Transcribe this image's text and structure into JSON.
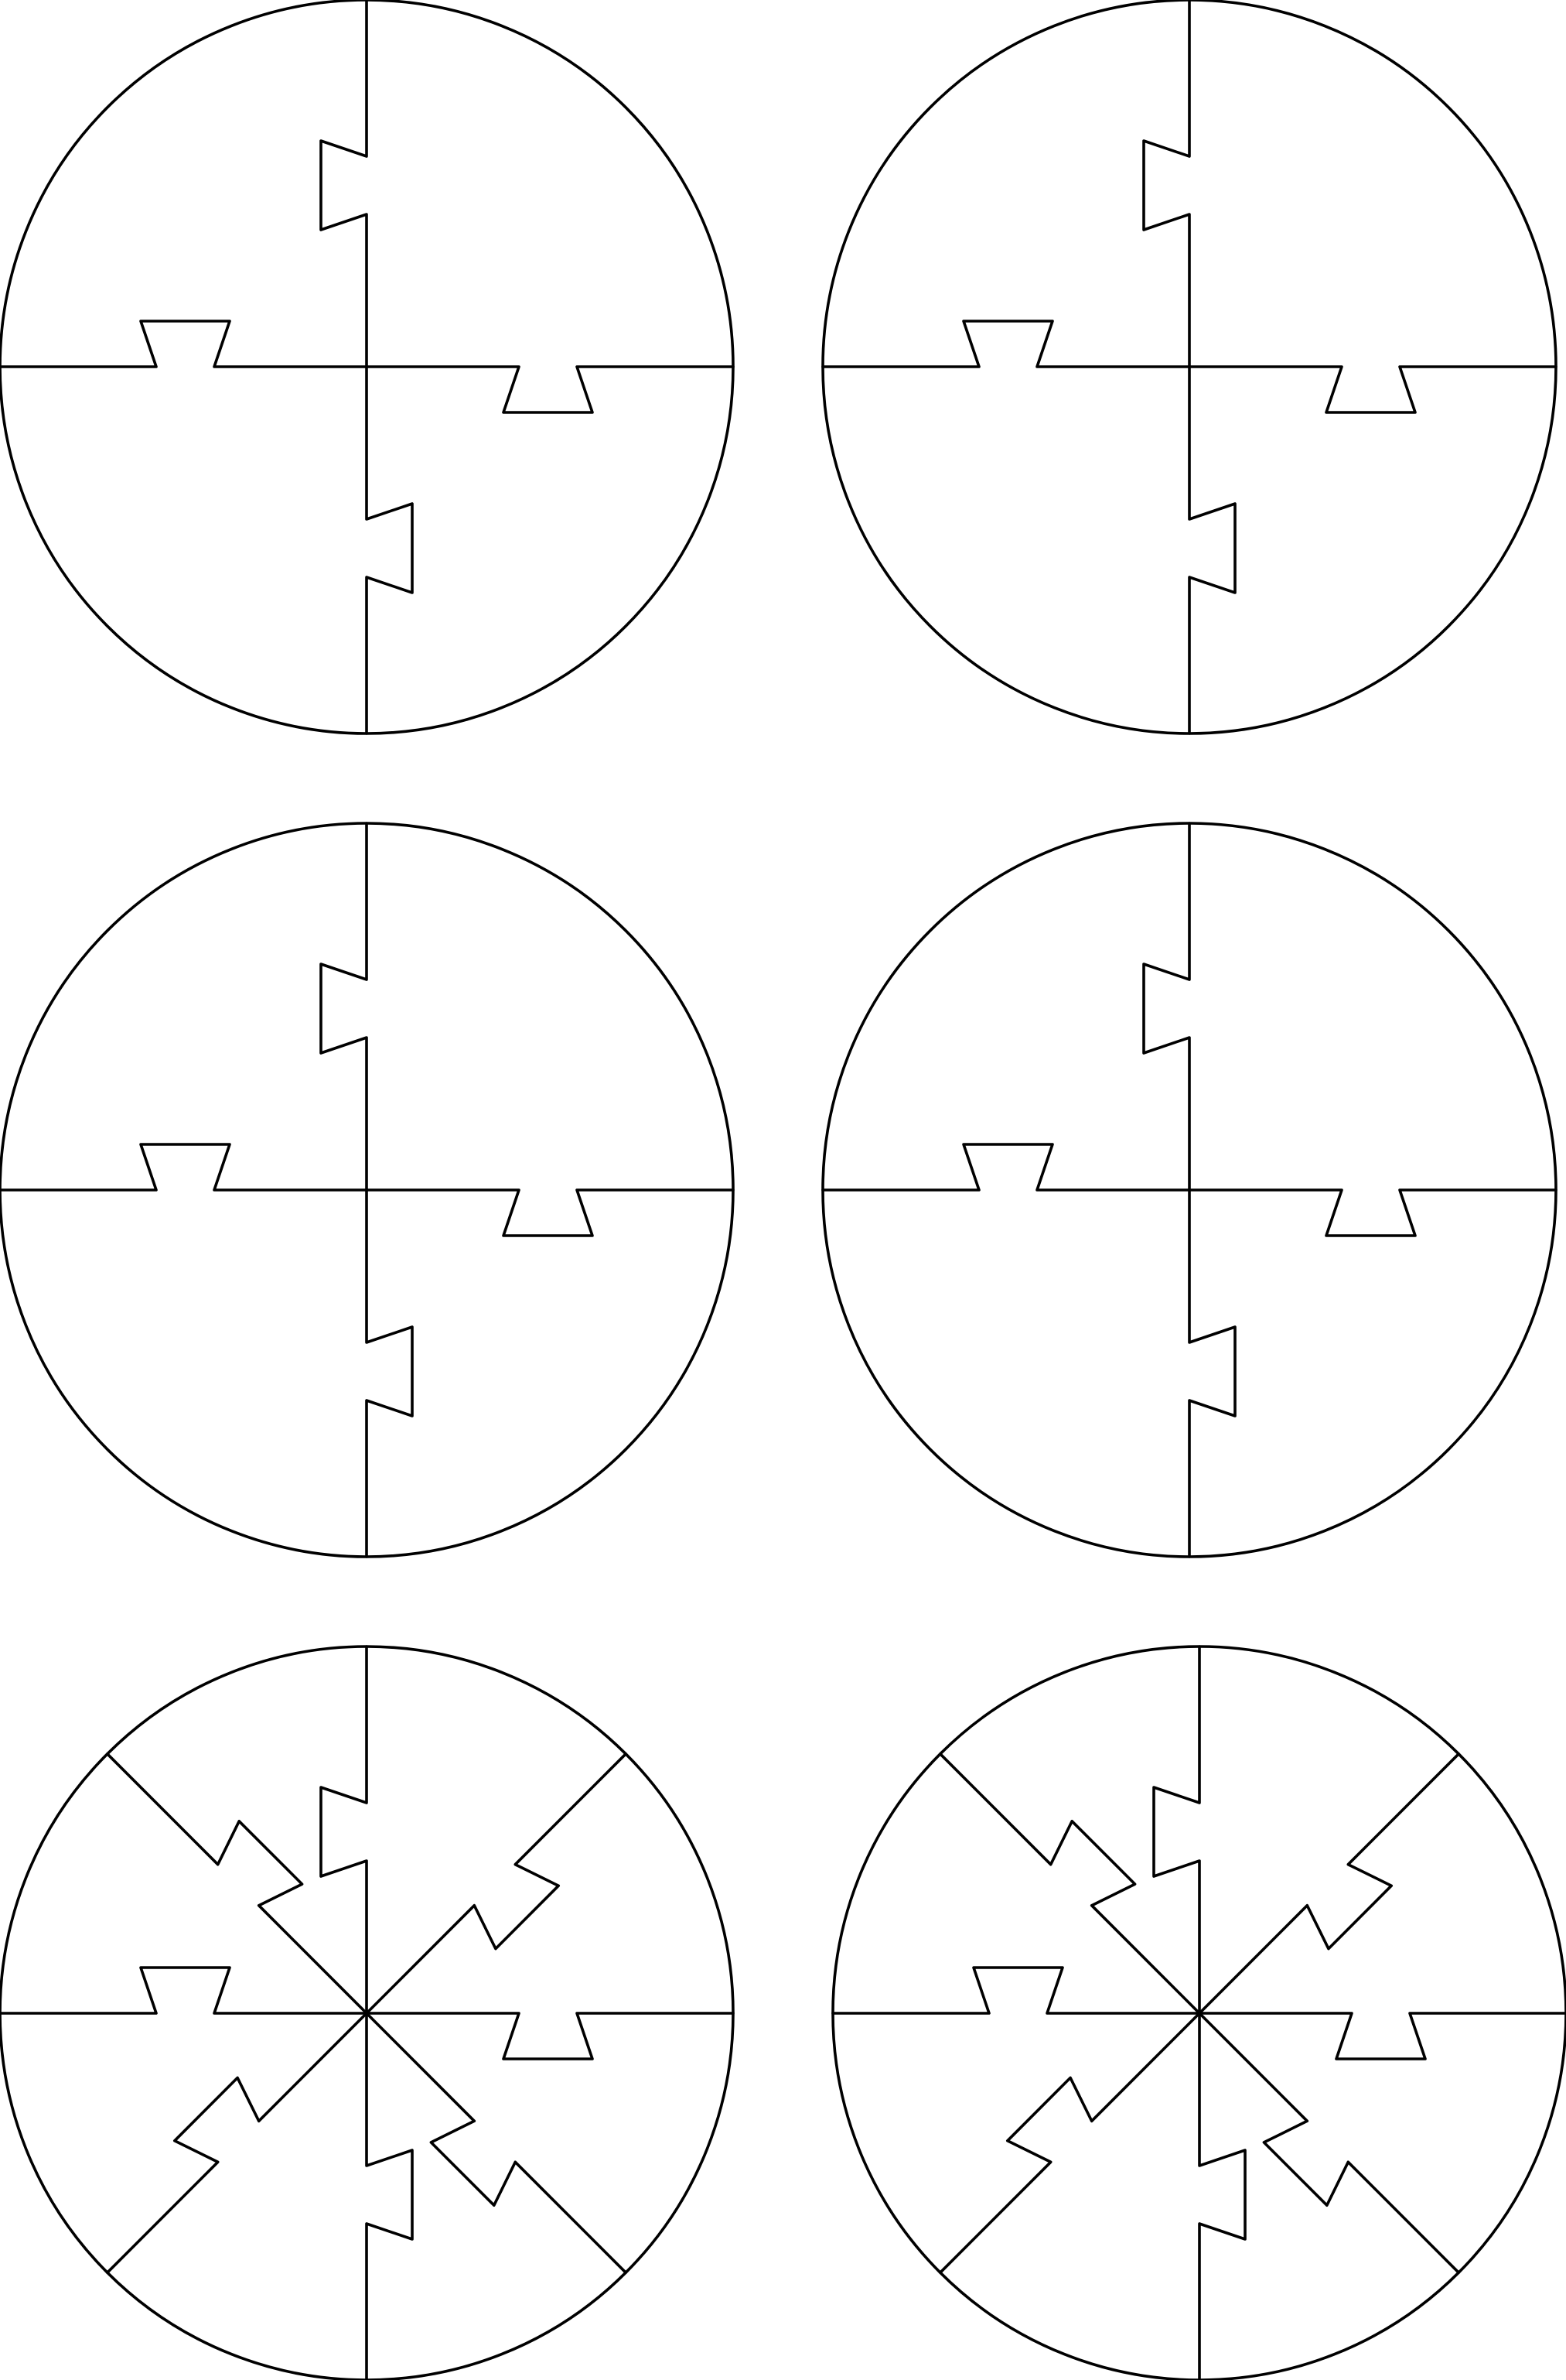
{
  "sheet": {
    "background_color": "#ffffff",
    "line_color": "#000000"
  },
  "puzzles": [
    {
      "name": "puzzle-circle-1",
      "piece_count": 4,
      "row": 1,
      "column": 1
    },
    {
      "name": "puzzle-circle-2",
      "piece_count": 4,
      "row": 1,
      "column": 2
    },
    {
      "name": "puzzle-circle-3",
      "piece_count": 4,
      "row": 2,
      "column": 1
    },
    {
      "name": "puzzle-circle-4",
      "piece_count": 4,
      "row": 2,
      "column": 2
    },
    {
      "name": "puzzle-circle-5",
      "piece_count": 8,
      "row": 3,
      "column": 1
    },
    {
      "name": "puzzle-circle-6",
      "piece_count": 8,
      "row": 3,
      "column": 2
    }
  ]
}
